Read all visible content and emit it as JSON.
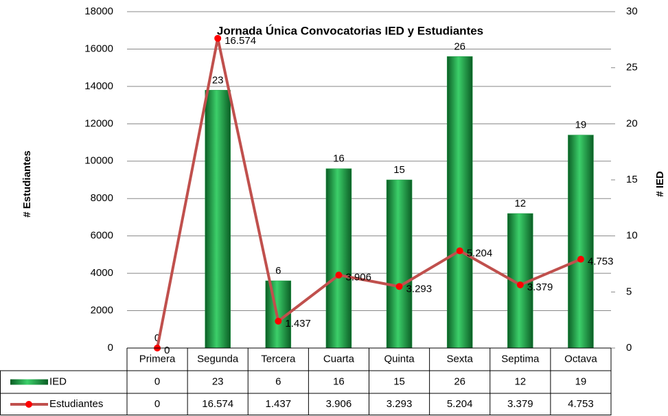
{
  "chart_data": {
    "type": "bar",
    "title": "Jornada Única Convocatorias IED y Estudiantes",
    "ylabel": "# Estudiantes",
    "y2label": "# IED",
    "categories": [
      "Primera",
      "Segunda",
      "Tercera",
      "Cuarta",
      "Quinta",
      "Sexta",
      "Septima",
      "Octava"
    ],
    "series": [
      {
        "name": "IED",
        "type": "bar",
        "axis": "y2",
        "color": "#1e9e46",
        "values": [
          0,
          23,
          6,
          16,
          15,
          26,
          12,
          19
        ]
      },
      {
        "name": "Estudiantes",
        "type": "line",
        "color": "#c0504d",
        "marker_color": "#ff0000",
        "values": [
          0,
          16574,
          1437,
          3906,
          3293,
          5204,
          3379,
          4753
        ],
        "value_labels": [
          "0",
          "16.574",
          "1.437",
          "3.906",
          "3.293",
          "5.204",
          "3.379",
          "4.753"
        ]
      }
    ],
    "ylim": [
      0,
      18000
    ],
    "yticks": [
      0,
      2000,
      4000,
      6000,
      8000,
      10000,
      12000,
      14000,
      16000,
      18000
    ],
    "y2lim": [
      0,
      30
    ],
    "y2ticks": [
      0,
      5,
      10,
      15,
      20,
      25,
      30
    ],
    "grid": true,
    "data_table": true
  }
}
